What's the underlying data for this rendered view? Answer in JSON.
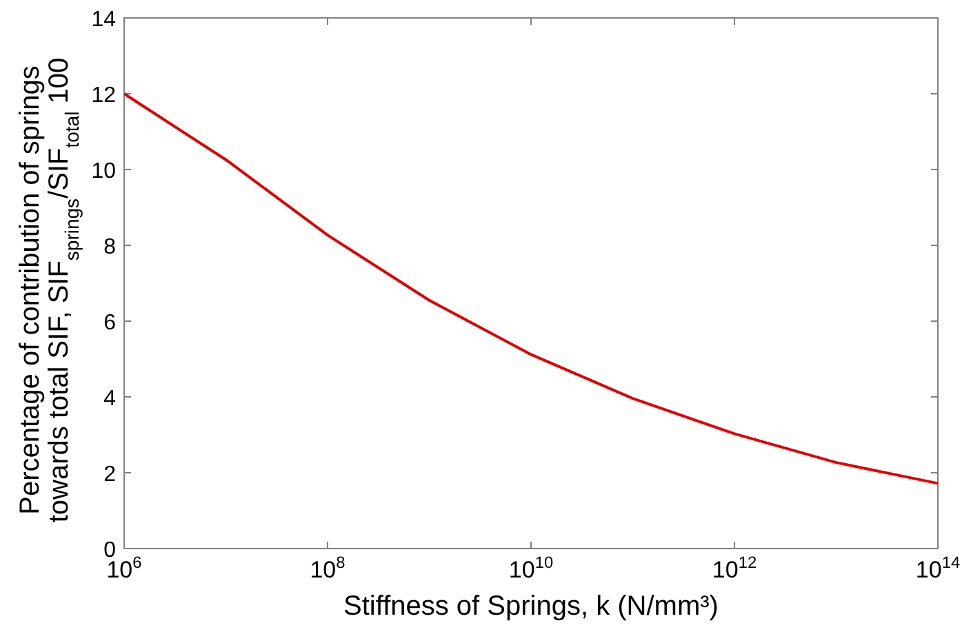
{
  "chart_data": {
    "type": "line",
    "xlabel": "Stiffness of Springs, k (N/mm³)",
    "ylabel": "Percentage of contribution of springs\ntowards total SIF, SIF$_{springs}$/SIF$_{total}$ 100",
    "x": [
      1000000.0,
      10000000.0,
      100000000.0,
      1000000000.0,
      10000000000.0,
      100000000000.0,
      1000000000000.0,
      10000000000000.0,
      100000000000000.0
    ],
    "series": [
      {
        "color": "#e00000",
        "values": [
          12.0,
          10.26,
          8.27,
          6.55,
          5.12,
          3.96,
          3.03,
          2.27,
          1.72
        ]
      }
    ],
    "log": "x",
    "xlim": [
      1000000.0,
      100000000000000.0
    ],
    "xticks": [
      {
        "value": 1000000.0,
        "label": "10$^{6}$"
      },
      {
        "value": 100000000.0,
        "label": "10$^{8}$"
      },
      {
        "value": 10000000000.0,
        "label": "10$^{10}$"
      },
      {
        "value": 1000000000000.0,
        "label": "10$^{12}$"
      },
      {
        "value": 100000000000000.0,
        "label": "10$^{14}$"
      }
    ],
    "ylim": [
      0,
      14
    ],
    "yticks": [
      0,
      2,
      4,
      6,
      8,
      10,
      12,
      14
    ],
    "grid": false,
    "marker": "none",
    "line_style": "solid"
  }
}
